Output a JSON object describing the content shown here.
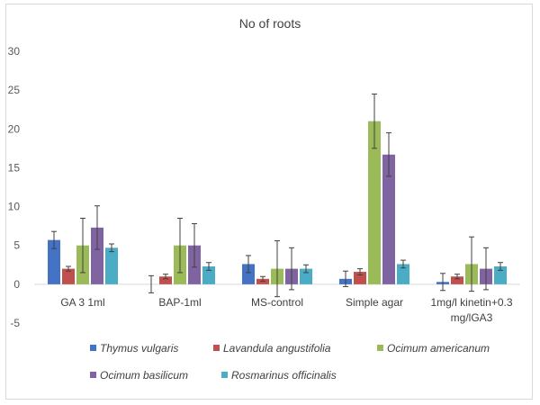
{
  "chart_data": {
    "type": "bar",
    "title": "No of roots",
    "xlabel": "",
    "ylabel": "",
    "ylim": [
      -5,
      30
    ],
    "yticks": [
      -5,
      0,
      5,
      10,
      15,
      20,
      25,
      30
    ],
    "grid": false,
    "legend_position": "bottom",
    "error_bars": true,
    "categories": [
      [
        "GA 3 1ml"
      ],
      [
        "BAP-1ml"
      ],
      [
        "MS-control"
      ],
      [
        "Simple agar"
      ],
      [
        "1mg/l kinetin+0.3",
        "mg/lGA3"
      ]
    ],
    "series": [
      {
        "name": "Thymus vulgaris",
        "color": "#4472C4",
        "values": [
          5.7,
          0,
          2.6,
          0.7,
          0.3
        ],
        "errors": [
          1.1,
          1.1,
          1.1,
          1.0,
          1.1
        ]
      },
      {
        "name": "Lavandula angustifolia",
        "color": "#C0504D",
        "values": [
          2.0,
          1.0,
          0.7,
          1.6,
          1.0
        ],
        "errors": [
          0.3,
          0.3,
          0.3,
          0.4,
          0.3
        ]
      },
      {
        "name": "Ocimum americanum",
        "color": "#9BBB59",
        "values": [
          5.0,
          5.0,
          2.0,
          21.0,
          2.6
        ],
        "errors": [
          3.5,
          3.5,
          3.6,
          3.5,
          3.5
        ]
      },
      {
        "name": "Ocimum basilicum",
        "color": "#8064A2",
        "values": [
          7.3,
          5.0,
          2.0,
          16.7,
          2.0
        ],
        "errors": [
          2.8,
          2.8,
          2.7,
          2.8,
          2.7
        ]
      },
      {
        "name": "Rosmarinus officinalis",
        "color": "#4BACC6",
        "values": [
          4.7,
          2.3,
          2.0,
          2.6,
          2.3
        ],
        "errors": [
          0.5,
          0.5,
          0.5,
          0.5,
          0.5
        ]
      }
    ]
  }
}
